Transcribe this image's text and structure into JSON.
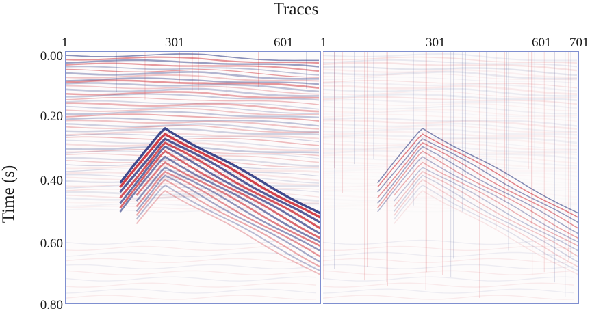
{
  "figure": {
    "title": "Traces",
    "ylabel": "Time (s)",
    "left_panel": {
      "x_ticks": [
        "1",
        "301",
        "601"
      ]
    },
    "right_panel": {
      "x_ticks": [
        "1",
        "301",
        "601",
        "701"
      ]
    },
    "y_ticks": [
      "0.00",
      "0.20",
      "0.40",
      "0.60",
      "0.80"
    ],
    "colors": {
      "positive": "#c8141e",
      "negative": "#1f2d7a",
      "frame": "#7f8fd0"
    }
  }
}
